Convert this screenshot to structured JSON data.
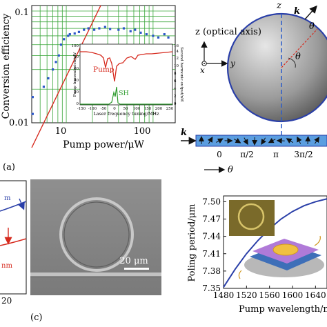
{
  "panel_a": {
    "label": "(a)",
    "ylabel": "Conversion efficiency",
    "xlabel": "Pump power/μW",
    "y_ticks": [
      "0.1",
      "0.01"
    ],
    "x_ticks": [
      "10",
      "100"
    ],
    "inset": {
      "pump_label": "Pump",
      "sh_label": "SH",
      "xlabel": "Laser frequency tuning/MHz",
      "ylabel_left": "Pump transmission/μW",
      "ylabel_right": "Second harmonic output/nW",
      "x_ticks": [
        "-150",
        "-100",
        "-50",
        "0",
        "50",
        "100",
        "150",
        "200",
        "250"
      ],
      "y_ticks_left": [
        "0",
        "20",
        "40",
        "60",
        "80",
        "100"
      ],
      "y_ticks_right": [
        "0",
        "2",
        "4",
        "6",
        "8",
        "10",
        "12",
        "14",
        "16"
      ]
    }
  },
  "panel_b": {
    "z_top_label": "z",
    "axis_label": "z (optical axis)",
    "x_label": "x",
    "y_label": "y",
    "k_label": "k",
    "theta_label": "θ",
    "strip_k": "k",
    "strip_ticks": [
      "0",
      "π/2",
      "π",
      "3π/2"
    ],
    "theta_arrow_label": "θ"
  },
  "panel_c": {
    "label": "(c)",
    "left_label_top": "m",
    "left_label_bottom": "nm",
    "left_tick": "20",
    "scale_bar": "20 μm",
    "chart_data": {
      "type": "line",
      "xlabel": "Pump wavelength/nm",
      "ylabel": "Poling period/μm",
      "x_ticks": [
        "1480",
        "1520",
        "1560",
        "1600",
        "1640"
      ],
      "y_ticks": [
        "7.35",
        "7.38",
        "7.41",
        "7.44",
        "7.47",
        "7.50"
      ],
      "xlim": [
        1480,
        1660
      ],
      "ylim": [
        7.35,
        7.51
      ],
      "series": [
        {
          "color": "#2a3fa8",
          "x": [
            1480,
            1500,
            1520,
            1540,
            1560,
            1580,
            1600,
            1620,
            1640,
            1660
          ],
          "y": [
            7.352,
            7.383,
            7.41,
            7.433,
            7.453,
            7.47,
            7.483,
            7.493,
            7.5,
            7.505
          ]
        }
      ]
    }
  },
  "colors": {
    "grid_green": "#3aa63a",
    "fit_red": "#d62a1e",
    "data_blue": "#2b56c8",
    "curve_blue": "#2a3fa8"
  }
}
